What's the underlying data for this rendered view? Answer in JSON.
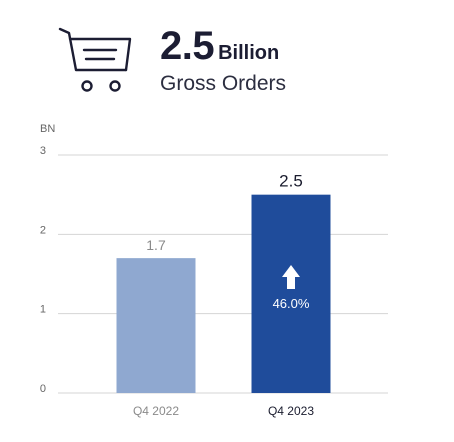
{
  "header": {
    "value": "2.5",
    "unit": "Billion",
    "label": "Gross Orders",
    "icon": "shopping-cart-icon"
  },
  "chart_data": {
    "type": "bar",
    "ylabel": "BN",
    "ylim": [
      0,
      3
    ],
    "yticks": [
      "0",
      "1",
      "2",
      "3"
    ],
    "categories": [
      "Q4 2022",
      "Q4 2023"
    ],
    "values": [
      1.7,
      2.5
    ],
    "value_labels": [
      "1.7",
      "2.5"
    ],
    "growth_label": "46.0%",
    "growth_icon": "arrow-up-icon",
    "grid": true,
    "colors": {
      "prior": "#8fa8d0",
      "current": "#1f4c9b",
      "grid": "#d4d4d4",
      "axis_text": "#666666",
      "prior_text": "#8a8a8a",
      "current_text": "#1a1c2e"
    }
  }
}
